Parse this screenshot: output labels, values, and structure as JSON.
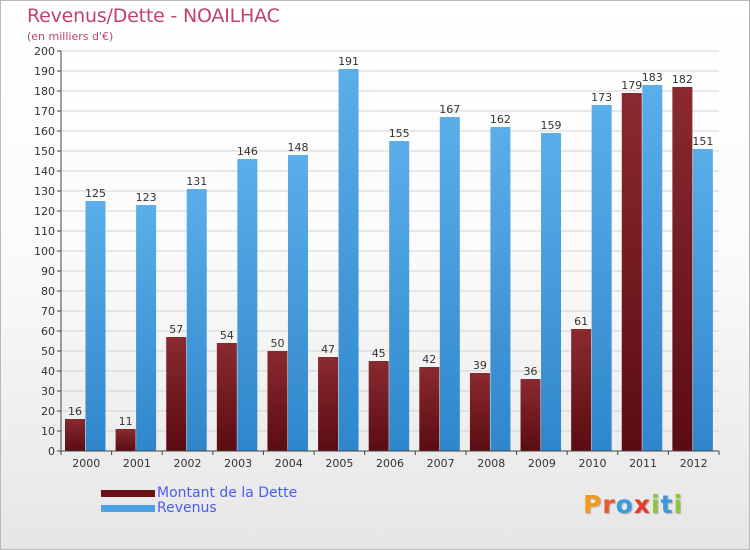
{
  "header": {
    "title": "Revenus/Dette - NOAILHAC",
    "subtitle": "(en milliers d'€)"
  },
  "colors": {
    "dette": "#7e1c24",
    "revenus": "#4ba3e6",
    "title": "#c1416e",
    "legend_text": "#4a5cf0"
  },
  "chart_data": {
    "type": "bar",
    "title": "Revenus/Dette - NOAILHAC",
    "subtitle": "(en milliers d'€)",
    "xlabel": "",
    "ylabel": "",
    "ylim": [
      0,
      200
    ],
    "ytick_step": 10,
    "grid": true,
    "categories": [
      "2000",
      "2001",
      "2002",
      "2003",
      "2004",
      "2005",
      "2006",
      "2007",
      "2008",
      "2009",
      "2010",
      "2011",
      "2012"
    ],
    "series": [
      {
        "name": "Montant de la Dette",
        "values": [
          16,
          11,
          57,
          54,
          50,
          47,
          45,
          42,
          39,
          36,
          61,
          179,
          182
        ]
      },
      {
        "name": "Revenus",
        "values": [
          125,
          123,
          131,
          146,
          148,
          191,
          155,
          167,
          162,
          159,
          173,
          183,
          151
        ]
      }
    ]
  },
  "legend": {
    "items": [
      {
        "label": "Montant de la Dette"
      },
      {
        "label": "Revenus"
      }
    ]
  },
  "brand": {
    "letters": [
      {
        "ch": "P",
        "color": "#f39a1e"
      },
      {
        "ch": "r",
        "color": "#e95a2f"
      },
      {
        "ch": "o",
        "color": "#3a9ad9"
      },
      {
        "ch": "x",
        "color": "#e53b2c"
      },
      {
        "ch": "i",
        "color": "#8cc63f"
      },
      {
        "ch": "t",
        "color": "#3a9ad9"
      },
      {
        "ch": "i",
        "color": "#8cc63f"
      }
    ]
  }
}
